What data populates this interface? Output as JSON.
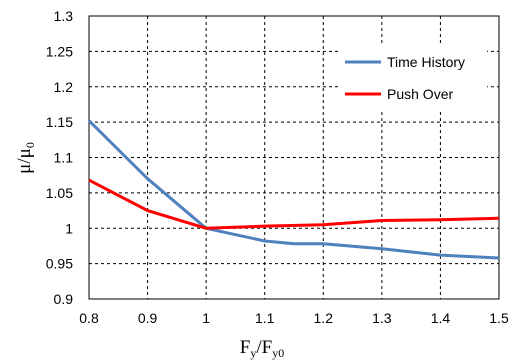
{
  "chart_data": {
    "type": "line",
    "xlabel": {
      "main": "F",
      "sub": "y",
      "slash": "/F",
      "sub2": "y0"
    },
    "ylabel": {
      "main": "μ/μ",
      "sub": "0"
    },
    "xlim": [
      0.8,
      1.5
    ],
    "ylim": [
      0.9,
      1.3
    ],
    "x_ticks": [
      "0.8",
      "0.9",
      "1",
      "1.1",
      "1.2",
      "1.3",
      "1.4",
      "1.5"
    ],
    "y_ticks": [
      "0.9",
      "0.95",
      "1",
      "1.05",
      "1.1",
      "1.15",
      "1.2",
      "1.25",
      "1.3"
    ],
    "grid": true,
    "legend_position": "top-right",
    "series": [
      {
        "name": "Time History",
        "color": "#4f81bd",
        "points": [
          [
            0.8,
            1.152
          ],
          [
            0.9,
            1.07
          ],
          [
            1.0,
            1.0
          ],
          [
            1.1,
            0.982
          ],
          [
            1.15,
            0.978
          ],
          [
            1.2,
            0.978
          ],
          [
            1.3,
            0.971
          ],
          [
            1.4,
            0.962
          ],
          [
            1.5,
            0.958
          ]
        ]
      },
      {
        "name": "Push Over",
        "color": "#ff0000",
        "points": [
          [
            0.8,
            1.068
          ],
          [
            0.9,
            1.025
          ],
          [
            1.0,
            1.0
          ],
          [
            1.1,
            1.003
          ],
          [
            1.2,
            1.005
          ],
          [
            1.3,
            1.011
          ],
          [
            1.4,
            1.012
          ],
          [
            1.5,
            1.014
          ]
        ]
      }
    ]
  }
}
